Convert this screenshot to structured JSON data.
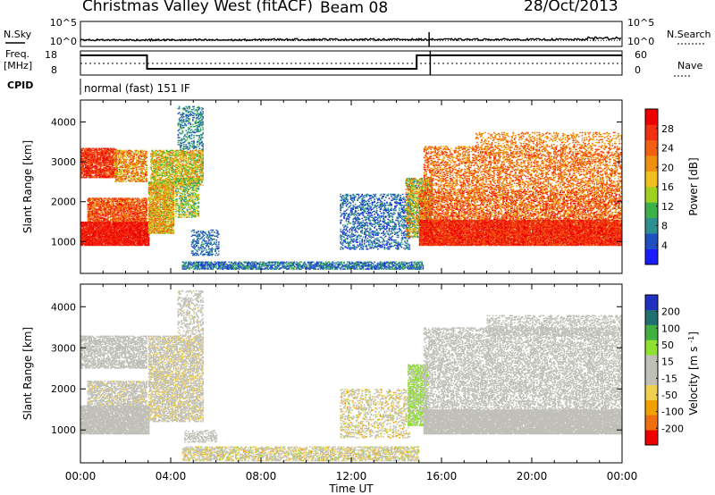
{
  "header": {
    "title": "Christmas Valley West (fitACF)",
    "beam": "Beam 08",
    "date": "28/Oct/2013"
  },
  "top_panels": {
    "nsky_label": "N.Sky",
    "nsearch_label": "N.Search",
    "noise_ticks": [
      "10^5",
      "10^0"
    ],
    "freq_label": "Freq.",
    "freq_unit": "[MHz]",
    "freq_ticks": [
      "18",
      "8"
    ],
    "nave_label": "Nave",
    "nave_ticks": [
      "60",
      "0"
    ],
    "cpid_label": "CPID",
    "cpid_value": "normal (fast) 151 IF"
  },
  "colors": {
    "power": [
      "#1b1bff",
      "#2050c0",
      "#2f8f8f",
      "#3cb04a",
      "#a0d020",
      "#f0c020",
      "#f09010",
      "#f06010",
      "#f03010",
      "#ee0000"
    ],
    "velocity": [
      "#ee0000",
      "#f07010",
      "#f0a000",
      "#f0d050",
      "#c0c0b8",
      "#c0c0b8",
      "#90e030",
      "#40b040",
      "#207070",
      "#2030c0"
    ]
  },
  "chart_data": [
    {
      "type": "heatmap",
      "quantity": "Power",
      "ylabel": "Slant Range [km]",
      "yticks": [
        1000,
        2000,
        3000,
        4000
      ],
      "ylim": [
        200,
        4550
      ],
      "xlim": [
        0,
        24
      ],
      "colorbar": {
        "label": "Power [dB]",
        "ticks": [
          4,
          8,
          12,
          16,
          20,
          24,
          28
        ],
        "range": [
          0,
          32
        ]
      },
      "regions": [
        {
          "t0": 0.0,
          "t1": 3.0,
          "r0": 900,
          "r1": 1500,
          "v0": 26,
          "v1": 31,
          "d": 0.95
        },
        {
          "t0": 0.3,
          "t1": 2.9,
          "r0": 1500,
          "r1": 2100,
          "v0": 20,
          "v1": 30,
          "d": 0.75
        },
        {
          "t0": 0.0,
          "t1": 1.6,
          "r0": 2600,
          "r1": 3350,
          "v0": 24,
          "v1": 30,
          "d": 0.8
        },
        {
          "t0": 1.5,
          "t1": 2.9,
          "r0": 2500,
          "r1": 3300,
          "v0": 14,
          "v1": 28,
          "d": 0.6
        },
        {
          "t0": 3.0,
          "t1": 4.1,
          "r0": 1200,
          "r1": 2500,
          "v0": 12,
          "v1": 26,
          "d": 0.8
        },
        {
          "t0": 3.1,
          "t1": 5.4,
          "r0": 2400,
          "r1": 3300,
          "v0": 10,
          "v1": 24,
          "d": 0.65
        },
        {
          "t0": 4.2,
          "t1": 5.2,
          "r0": 1600,
          "r1": 2600,
          "v0": 8,
          "v1": 20,
          "d": 0.5
        },
        {
          "t0": 4.3,
          "t1": 5.4,
          "r0": 3300,
          "r1": 4400,
          "v0": 4,
          "v1": 12,
          "d": 0.35
        },
        {
          "t0": 4.9,
          "t1": 6.1,
          "r0": 650,
          "r1": 1300,
          "v0": 3,
          "v1": 9,
          "d": 0.3
        },
        {
          "t0": 4.5,
          "t1": 15.2,
          "r0": 300,
          "r1": 500,
          "v0": 2,
          "v1": 12,
          "d": 0.65
        },
        {
          "t0": 11.5,
          "t1": 14.6,
          "r0": 800,
          "r1": 2200,
          "v0": 2,
          "v1": 10,
          "d": 0.35
        },
        {
          "t0": 14.4,
          "t1": 15.6,
          "r0": 1100,
          "r1": 2600,
          "v0": 6,
          "v1": 26,
          "d": 0.65
        },
        {
          "t0": 15.0,
          "t1": 24.0,
          "r0": 900,
          "r1": 1550,
          "v0": 24,
          "v1": 31,
          "d": 0.95
        },
        {
          "t0": 15.0,
          "t1": 24.0,
          "r0": 1550,
          "r1": 2300,
          "v0": 18,
          "v1": 30,
          "d": 0.55
        },
        {
          "t0": 15.2,
          "t1": 24.0,
          "r0": 2300,
          "r1": 3400,
          "v0": 18,
          "v1": 28,
          "d": 0.4
        },
        {
          "t0": 17.5,
          "t1": 24.0,
          "r0": 3400,
          "r1": 3750,
          "v0": 18,
          "v1": 26,
          "d": 0.25
        }
      ]
    },
    {
      "type": "heatmap",
      "quantity": "Velocity",
      "ylabel": "Slant Range [km]",
      "yticks": [
        1000,
        2000,
        3000,
        4000
      ],
      "ylim": [
        200,
        4550
      ],
      "xlim": [
        0,
        24
      ],
      "xticks": [
        "00:00",
        "04:00",
        "08:00",
        "12:00",
        "16:00",
        "20:00",
        "00:00"
      ],
      "xlabel": "Time UT",
      "colorbar": {
        "label": "Velocity [m s-1]",
        "ticks": [
          200,
          100,
          50,
          15,
          -15,
          -50,
          -100,
          -200
        ],
        "range": [
          -250,
          250
        ]
      },
      "regions": [
        {
          "t0": 0.0,
          "t1": 3.0,
          "r0": 900,
          "r1": 1600,
          "v0": -30,
          "v1": 10,
          "d": 0.9
        },
        {
          "t0": 0.3,
          "t1": 2.9,
          "r0": 1600,
          "r1": 2200,
          "v0": -60,
          "v1": 10,
          "d": 0.6
        },
        {
          "t0": 0.0,
          "t1": 2.9,
          "r0": 2500,
          "r1": 3300,
          "v0": -40,
          "v1": 10,
          "d": 0.6
        },
        {
          "t0": 3.0,
          "t1": 5.4,
          "r0": 1200,
          "r1": 3300,
          "v0": -80,
          "v1": 40,
          "d": 0.6
        },
        {
          "t0": 4.3,
          "t1": 5.4,
          "r0": 3300,
          "r1": 4400,
          "v0": -60,
          "v1": 20,
          "d": 0.3
        },
        {
          "t0": 4.6,
          "t1": 6.0,
          "r0": 700,
          "r1": 1000,
          "v0": -30,
          "v1": 10,
          "d": 0.4
        },
        {
          "t0": 4.5,
          "t1": 15.0,
          "r0": 250,
          "r1": 600,
          "v0": -110,
          "v1": 60,
          "d": 0.55
        },
        {
          "t0": 11.5,
          "t1": 14.6,
          "r0": 800,
          "r1": 2000,
          "v0": -120,
          "v1": 60,
          "d": 0.3
        },
        {
          "t0": 14.5,
          "t1": 15.4,
          "r0": 1100,
          "r1": 2600,
          "v0": 30,
          "v1": 80,
          "d": 0.7
        },
        {
          "t0": 15.2,
          "t1": 24.0,
          "r0": 900,
          "r1": 1500,
          "v0": -14,
          "v1": 14,
          "d": 0.95
        },
        {
          "t0": 15.2,
          "t1": 24.0,
          "r0": 1500,
          "r1": 3500,
          "v0": -40,
          "v1": 14,
          "d": 0.45
        },
        {
          "t0": 18.0,
          "t1": 24.0,
          "r0": 3300,
          "r1": 3800,
          "v0": -14,
          "v1": 14,
          "d": 0.35
        }
      ]
    }
  ],
  "time_series": {
    "freq_mhz": [
      {
        "t": 0.0,
        "v": 16.2
      },
      {
        "t": 2.95,
        "v": 16.2
      },
      {
        "t": 2.95,
        "v": 10.6
      },
      {
        "t": 14.9,
        "v": 10.6
      },
      {
        "t": 14.9,
        "v": 16.2
      },
      {
        "t": 24.0,
        "v": 16.2
      }
    ],
    "freq_range": [
      8,
      18
    ],
    "noise_log": [
      {
        "t": 0.0,
        "v": 1.3
      },
      {
        "t": 8.0,
        "v": 1.4
      },
      {
        "t": 15.4,
        "v": 1.4
      },
      {
        "t": 15.4,
        "v": 0.0
      },
      {
        "t": 15.5,
        "v": 1.2
      },
      {
        "t": 24.0,
        "v": 1.4
      }
    ],
    "noise_range": [
      0,
      5
    ]
  }
}
